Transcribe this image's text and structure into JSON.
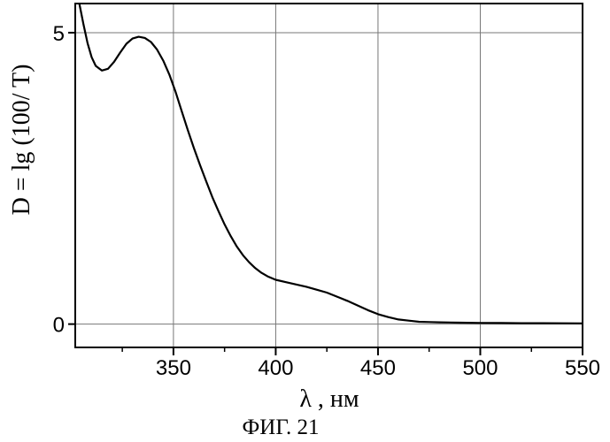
{
  "chart_data": {
    "type": "line",
    "title": "",
    "xlabel": "λ , нм",
    "ylabel": "D = lg (100/ T)",
    "caption": "ФИГ. 21",
    "xlim": [
      302,
      550
    ],
    "ylim": [
      -0.4,
      5.5
    ],
    "x_ticks": [
      350,
      400,
      450,
      500,
      550
    ],
    "x_tick_labels": [
      "350",
      "400",
      "450",
      "500",
      "550"
    ],
    "y_ticks": [
      0,
      5
    ],
    "y_tick_labels": [
      "0",
      "5"
    ],
    "grid": true,
    "legend": "none",
    "line_color": "#000000",
    "series": [
      {
        "x": [
          304,
          306,
          308,
          310,
          312,
          315,
          318,
          321,
          324,
          327,
          330,
          333,
          336,
          339,
          342,
          345,
          348,
          351,
          354,
          357,
          360,
          363,
          366,
          369,
          372,
          375,
          378,
          381,
          384,
          387,
          390,
          393,
          396,
          400,
          405,
          410,
          415,
          420,
          425,
          430,
          435,
          440,
          445,
          450,
          455,
          460,
          465,
          470,
          475,
          480,
          490,
          500,
          510,
          520,
          530,
          540,
          550
        ],
        "y": [
          5.5,
          5.15,
          4.82,
          4.58,
          4.43,
          4.35,
          4.38,
          4.5,
          4.66,
          4.81,
          4.9,
          4.93,
          4.91,
          4.84,
          4.71,
          4.52,
          4.28,
          3.99,
          3.66,
          3.33,
          3.02,
          2.73,
          2.45,
          2.18,
          1.94,
          1.71,
          1.51,
          1.33,
          1.18,
          1.06,
          0.96,
          0.88,
          0.82,
          0.76,
          0.72,
          0.68,
          0.64,
          0.59,
          0.54,
          0.47,
          0.4,
          0.32,
          0.24,
          0.17,
          0.12,
          0.08,
          0.06,
          0.04,
          0.035,
          0.03,
          0.025,
          0.02,
          0.018,
          0.016,
          0.015,
          0.014,
          0.013
        ]
      }
    ]
  }
}
